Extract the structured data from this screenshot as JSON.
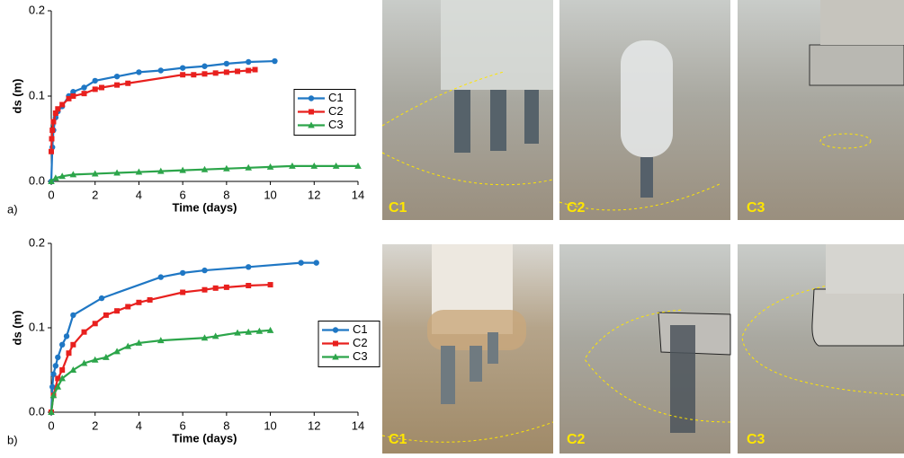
{
  "chart_data": [
    {
      "type": "line",
      "panel_label": "a)",
      "xlabel": "Time (days)",
      "ylabel": "ds (m)",
      "xlim": [
        0,
        14
      ],
      "ylim": [
        0,
        0.2
      ],
      "xticks": [
        0,
        2,
        4,
        6,
        8,
        10,
        12,
        14
      ],
      "yticks": [
        {
          "value": 0,
          "label": "0.0"
        },
        0.1,
        0.2
      ],
      "legend": "center right",
      "series": [
        {
          "name": "C1",
          "color": "#1f77c4",
          "marker": "circle",
          "x": [
            0,
            0.05,
            0.1,
            0.2,
            0.3,
            0.5,
            0.8,
            1,
            1.5,
            2,
            3,
            4,
            5,
            6,
            7,
            8,
            9,
            10.2
          ],
          "values": [
            0,
            0.04,
            0.06,
            0.075,
            0.082,
            0.088,
            0.1,
            0.105,
            0.11,
            0.118,
            0.123,
            0.128,
            0.13,
            0.133,
            0.135,
            0.138,
            0.14,
            0.141
          ]
        },
        {
          "name": "C2",
          "color": "#e8201e",
          "marker": "square",
          "x": [
            0,
            0.02,
            0.05,
            0.1,
            0.2,
            0.3,
            0.5,
            0.8,
            1,
            1.5,
            2,
            2.3,
            3,
            3.5,
            6,
            6.5,
            7,
            7.5,
            8,
            8.5,
            9,
            9.3
          ],
          "values": [
            0.035,
            0.05,
            0.06,
            0.07,
            0.08,
            0.085,
            0.09,
            0.097,
            0.1,
            0.103,
            0.108,
            0.11,
            0.113,
            0.115,
            0.125,
            0.125,
            0.126,
            0.127,
            0.128,
            0.129,
            0.13,
            0.131
          ]
        },
        {
          "name": "C3",
          "color": "#2ca54a",
          "marker": "triangle",
          "x": [
            0,
            0.2,
            0.5,
            1,
            2,
            3,
            4,
            5,
            6,
            7,
            8,
            9,
            10,
            11,
            12,
            13,
            14
          ],
          "values": [
            0,
            0.004,
            0.006,
            0.008,
            0.009,
            0.01,
            0.011,
            0.012,
            0.013,
            0.014,
            0.015,
            0.016,
            0.017,
            0.018,
            0.018,
            0.018,
            0.018
          ]
        }
      ]
    },
    {
      "type": "line",
      "panel_label": "b)",
      "xlabel": "Time (days)",
      "ylabel": "ds (m)",
      "xlim": [
        0,
        14
      ],
      "ylim": [
        0,
        0.2
      ],
      "xticks": [
        0,
        2,
        4,
        6,
        8,
        10,
        12,
        14
      ],
      "yticks": [
        {
          "value": 0,
          "label": "0.0"
        },
        0.1,
        0.2
      ],
      "legend": "center right",
      "series": [
        {
          "name": "C1",
          "color": "#1f77c4",
          "marker": "circle",
          "x": [
            0,
            0.05,
            0.1,
            0.2,
            0.3,
            0.5,
            0.7,
            1,
            2.3,
            5,
            6,
            7,
            9,
            11.4,
            12.1
          ],
          "values": [
            0,
            0.03,
            0.045,
            0.055,
            0.065,
            0.08,
            0.09,
            0.115,
            0.135,
            0.16,
            0.165,
            0.168,
            0.172,
            0.177,
            0.177
          ]
        },
        {
          "name": "C2",
          "color": "#e8201e",
          "marker": "square",
          "x": [
            0,
            0.1,
            0.3,
            0.5,
            0.8,
            1,
            1.5,
            2,
            2.5,
            3,
            3.5,
            4,
            4.5,
            6,
            7,
            7.5,
            8,
            9,
            10
          ],
          "values": [
            0,
            0.02,
            0.04,
            0.05,
            0.07,
            0.08,
            0.095,
            0.105,
            0.115,
            0.12,
            0.125,
            0.13,
            0.133,
            0.142,
            0.145,
            0.147,
            0.148,
            0.15,
            0.151
          ]
        },
        {
          "name": "C3",
          "color": "#2ca54a",
          "marker": "triangle",
          "x": [
            0,
            0.1,
            0.3,
            0.5,
            1,
            1.5,
            2,
            2.5,
            3,
            3.5,
            4,
            5,
            7,
            7.5,
            8.5,
            9,
            9.5,
            10
          ],
          "values": [
            0,
            0.02,
            0.03,
            0.04,
            0.05,
            0.058,
            0.062,
            0.065,
            0.072,
            0.078,
            0.082,
            0.085,
            0.088,
            0.09,
            0.094,
            0.095,
            0.096,
            0.097
          ]
        }
      ]
    }
  ],
  "photos": [
    [
      "C1",
      "C2",
      "C3"
    ],
    [
      "C1",
      "C2",
      "C3"
    ]
  ]
}
